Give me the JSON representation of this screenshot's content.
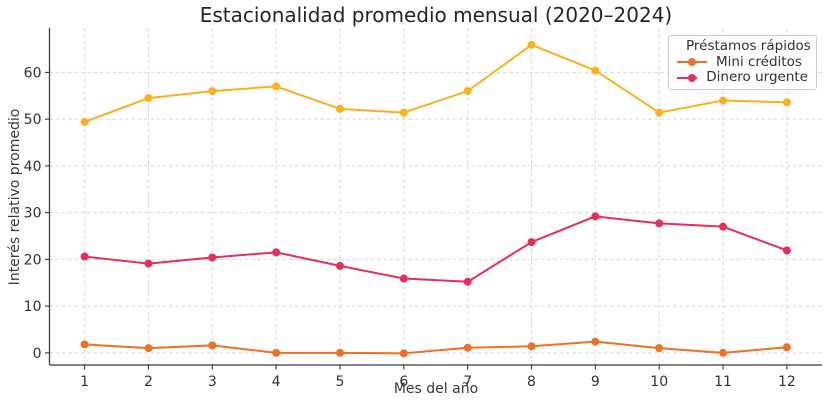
{
  "chart_data": {
    "type": "line",
    "title": "Estacionalidad promedio mensual (2020–2024)",
    "xlabel": "Mes del año",
    "ylabel": "Interés relativo promedio",
    "x": [
      1,
      2,
      3,
      4,
      5,
      6,
      7,
      8,
      9,
      10,
      11,
      12
    ],
    "yticks": [
      0,
      10,
      20,
      30,
      40,
      50,
      60
    ],
    "xlim": [
      0.45,
      12.55
    ],
    "ylim": [
      -2.6,
      69.5
    ],
    "grid": true,
    "grid_style": "dashed",
    "legend_position": "upper right",
    "series": [
      {
        "name": "Préstamos rápidos",
        "color": "#FBB01E",
        "marker": "circle",
        "values": [
          49.4,
          54.5,
          56.0,
          57.0,
          52.2,
          51.4,
          56.0,
          65.9,
          60.4,
          51.4,
          54.0,
          53.6
        ]
      },
      {
        "name": "Mini créditos",
        "color": "#EE7125",
        "marker": "circle",
        "values": [
          1.8,
          1.0,
          1.6,
          0.0,
          0.0,
          -0.1,
          1.1,
          1.4,
          2.4,
          1.0,
          0.0,
          1.2
        ]
      },
      {
        "name": "Dinero urgente",
        "color": "#E82D5B",
        "marker": "circle",
        "values": [
          20.6,
          19.1,
          20.4,
          21.5,
          18.6,
          15.9,
          15.2,
          23.7,
          29.2,
          27.7,
          27.0,
          21.9
        ]
      }
    ]
  },
  "style": {
    "axis_color": "#3b3b3b",
    "tick_label_color": "#333333",
    "grid_color": "#d8d8d8",
    "legend_border": "#cccccc"
  }
}
